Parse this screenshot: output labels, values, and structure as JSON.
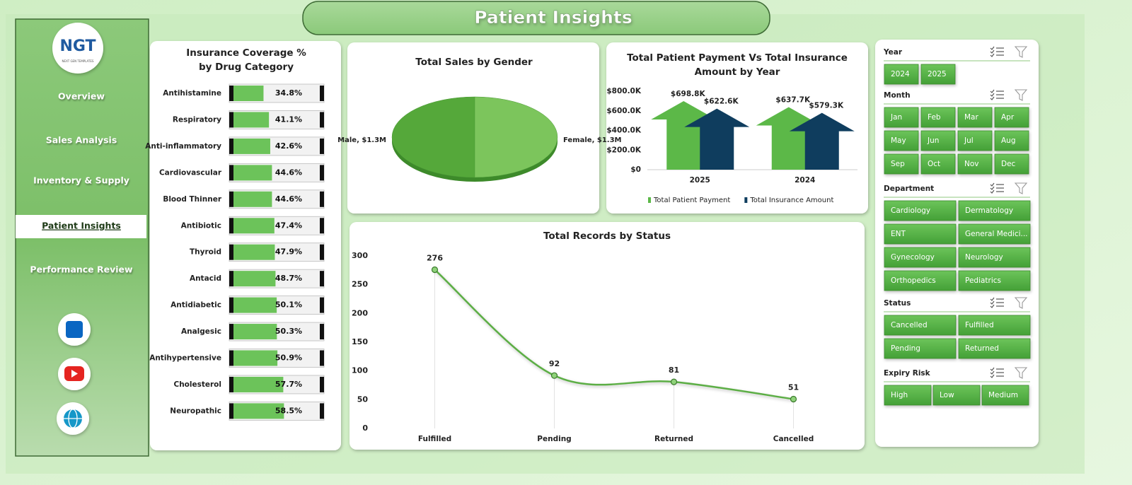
{
  "header": {
    "title": "Patient Insights"
  },
  "sidebar": {
    "logo": "NGT",
    "logo_sub": "NEXT GEN TEMPLATES",
    "nav": [
      "Overview",
      "Sales Analysis",
      "Inventory & Supply",
      "Patient Insights",
      "Performance Review"
    ],
    "active": 3
  },
  "chart_data": [
    {
      "type": "hbar",
      "title": "Insurance Coverage % by Drug Category",
      "categories": [
        "Antihistamine",
        "Respiratory",
        "Anti-inflammatory",
        "Cardiovascular",
        "Blood Thinner",
        "Antibiotic",
        "Thyroid",
        "Antacid",
        "Antidiabetic",
        "Analgesic",
        "Antihypertensive",
        "Cholesterol",
        "Neuropathic"
      ],
      "values": [
        34.8,
        41.1,
        42.6,
        44.6,
        44.6,
        47.4,
        47.9,
        48.7,
        50.1,
        50.3,
        50.9,
        57.7,
        58.5
      ],
      "value_labels": [
        "34.8%",
        "41.1%",
        "42.6%",
        "44.6%",
        "44.6%",
        "47.4%",
        "47.9%",
        "48.7%",
        "50.1%",
        "50.3%",
        "50.9%",
        "57.7%",
        "58.5%"
      ],
      "xlim": [
        0,
        100
      ],
      "color": "#6cc35a"
    },
    {
      "type": "pie",
      "title": "Total Sales by Gender",
      "categories": [
        "Male",
        "Female"
      ],
      "values": [
        1300000,
        1300000
      ],
      "value_labels": [
        "Male, $1.3M",
        "Female, $1.3M"
      ],
      "colors": [
        "#55a83a",
        "#7cc55c"
      ]
    },
    {
      "type": "arrowbar",
      "title": "Total Patient Payment Vs Total Insurance Amount by Year",
      "categories": [
        "2025",
        "2024"
      ],
      "series": [
        {
          "name": "Total Patient Payment",
          "color": "#5cb848",
          "values": [
            698800,
            637700
          ],
          "value_labels": [
            "$698.8K",
            "$637.7K"
          ]
        },
        {
          "name": "Total Insurance Amount",
          "color": "#0f3d5e",
          "values": [
            622600,
            579300
          ],
          "value_labels": [
            "$622.6K",
            "$579.3K"
          ]
        }
      ],
      "ylim": [
        0,
        800000
      ],
      "yticks": [
        {
          "value": 0,
          "label": "$0"
        },
        {
          "value": 200000,
          "label": "$200.0K"
        },
        {
          "value": 400000,
          "label": "$400.0K"
        },
        {
          "value": 600000,
          "label": "$600.0K"
        },
        {
          "value": 800000,
          "label": "$800.0K"
        }
      ],
      "legend": "bottom",
      "grid": false
    },
    {
      "type": "line",
      "title": "Total Records by Status",
      "categories": [
        "Fulfilled",
        "Pending",
        "Returned",
        "Cancelled"
      ],
      "values": [
        276,
        92,
        81,
        51
      ],
      "ylim": [
        0,
        300
      ],
      "yticks": [
        0,
        50,
        100,
        150,
        200,
        250,
        300
      ],
      "color": "#5cae45",
      "grid": false
    }
  ],
  "slicers": [
    {
      "title": "Year",
      "items": [
        "2024",
        "2025"
      ]
    },
    {
      "title": "Month",
      "items": [
        "Jan",
        "Feb",
        "Mar",
        "Apr",
        "May",
        "Jun",
        "Jul",
        "Aug",
        "Sep",
        "Oct",
        "Nov",
        "Dec"
      ]
    },
    {
      "title": "Department",
      "items": [
        "Cardiology",
        "Dermatology",
        "ENT",
        "General Medici...",
        "Gynecology",
        "Neurology",
        "Orthopedics",
        "Pediatrics"
      ]
    },
    {
      "title": "Status",
      "items": [
        "Cancelled",
        "Fulfilled",
        "Pending",
        "Returned"
      ]
    },
    {
      "title": "Expiry Risk",
      "items": [
        "High",
        "Low",
        "Medium"
      ]
    }
  ]
}
